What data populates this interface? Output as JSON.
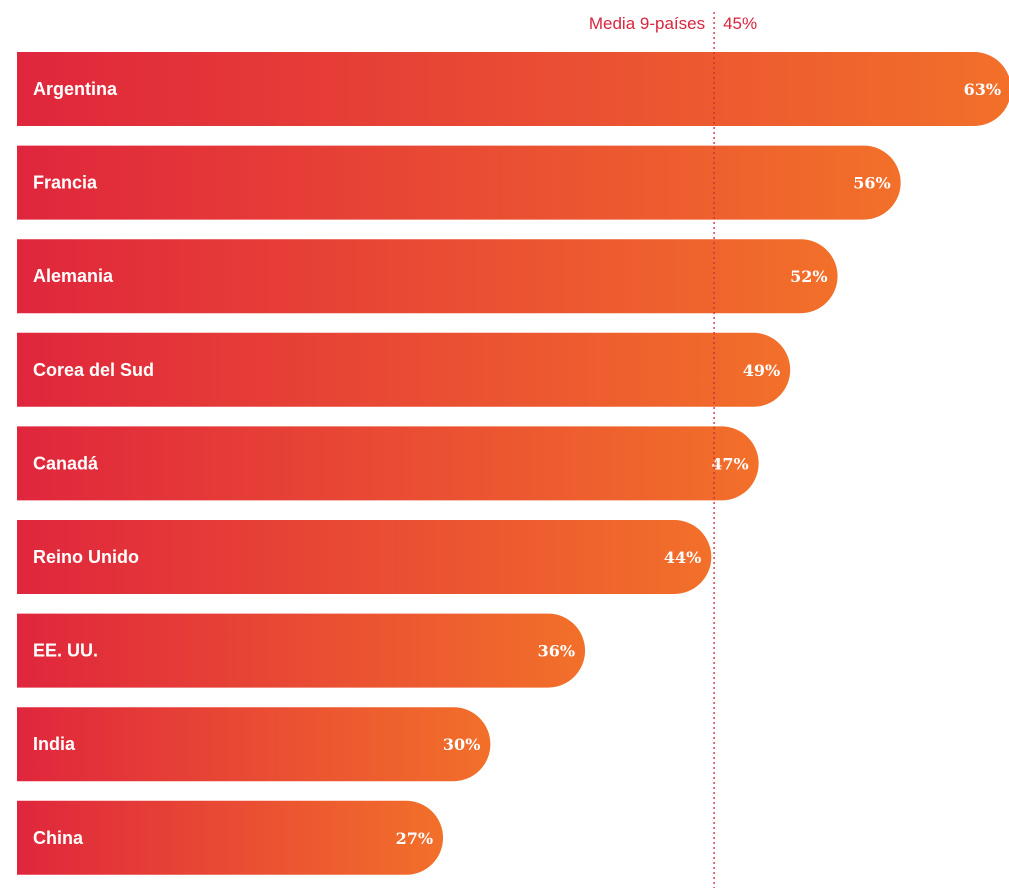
{
  "chart_data": {
    "type": "bar",
    "orientation": "horizontal",
    "categories": [
      "Argentina",
      "Francia",
      "Alemania",
      "Corea del Sud",
      "Canadá",
      "Reino Unido",
      "EE. UU.",
      "India",
      "China"
    ],
    "values": [
      63,
      56,
      52,
      49,
      47,
      44,
      36,
      30,
      27
    ],
    "value_labels": [
      "63%",
      "56%",
      "52%",
      "49%",
      "47%",
      "44%",
      "36%",
      "30%",
      "27%"
    ],
    "reference_line": {
      "label": "Media 9-países",
      "value": 45,
      "value_label": "45%"
    },
    "title": "",
    "xlabel": "",
    "ylabel": "",
    "grid": false,
    "legend": "none"
  },
  "colors": {
    "bar_start": "#e0263d",
    "bar_end": "#f2702a",
    "reference": "#d9243f",
    "text_on_bar": "#ffffff"
  }
}
